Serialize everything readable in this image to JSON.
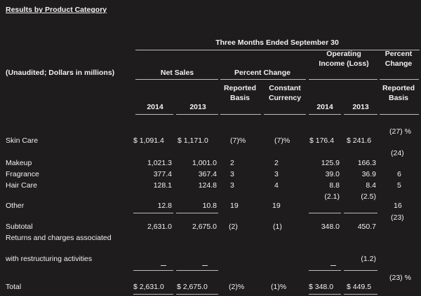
{
  "title": "Results by Product Category",
  "period_header": "Three Months Ended September 30",
  "unaudited_label": "(Unaudited; Dollars in millions)",
  "headers": {
    "net_sales": "Net Sales",
    "percent_change": "Percent Change",
    "operating_income": [
      "Operating",
      "Income (Loss)"
    ],
    "percent_change_2": [
      "Percent",
      "Change"
    ],
    "reported_basis": [
      "Reported",
      "Basis"
    ],
    "constant_currency": [
      "Constant",
      "Currency"
    ],
    "reported_basis_2": [
      "Reported",
      "Basis"
    ],
    "year_2014": "2014",
    "year_2013": "2013"
  },
  "rows": [
    {
      "label": "Skin Care",
      "ns2014": "$ 1,091.4",
      "ns2013": "$ 1,171.0",
      "rep": "(7)%",
      "cc": "(7)%",
      "oi2014": "$ 176.4",
      "oi2013": "$ 241.6",
      "pc": "(27) %"
    },
    {
      "label": "Makeup",
      "ns2014": "1,021.3",
      "ns2013": "1,001.0",
      "rep": "2",
      "cc": "2",
      "oi2014": "125.9",
      "oi2013": "166.3",
      "pc": "(24)"
    },
    {
      "label": "Fragrance",
      "ns2014": "377.4",
      "ns2013": "367.4",
      "rep": "3",
      "cc": "3",
      "oi2014": "39.0",
      "oi2013": "36.9",
      "pc": "6"
    },
    {
      "label": "Hair Care",
      "ns2014": "128.1",
      "ns2013": "124.8",
      "rep": "3",
      "cc": "4",
      "oi2014": "8.8",
      "oi2013": "8.4",
      "pc": "5"
    },
    {
      "label": "Other",
      "ns2014": "12.8",
      "ns2013": "10.8",
      "rep": "19",
      "cc": "19",
      "oi2014": "(2.1)",
      "oi2013": "(2.5)",
      "pc": "16"
    },
    {
      "label": "Subtotal",
      "ns2014": "2,631.0",
      "ns2013": "2,675.0",
      "rep": "(2)",
      "cc": "(1)",
      "oi2014": "348.0",
      "oi2013": "450.7",
      "pc": "(23)"
    },
    {
      "label": [
        "Returns and charges associated",
        "with restructuring activities"
      ],
      "ns2014": "—",
      "ns2013": "—",
      "oi2014": "—",
      "oi2013": "(1.2)"
    },
    {
      "label": "Total",
      "ns2014": "$ 2,631.0",
      "ns2013": "$ 2,675.0",
      "rep": "(2)%",
      "cc": "(1)%",
      "oi2014": "$ 348.0",
      "oi2013": "$ 449.5",
      "pc": "(23) %"
    }
  ]
}
